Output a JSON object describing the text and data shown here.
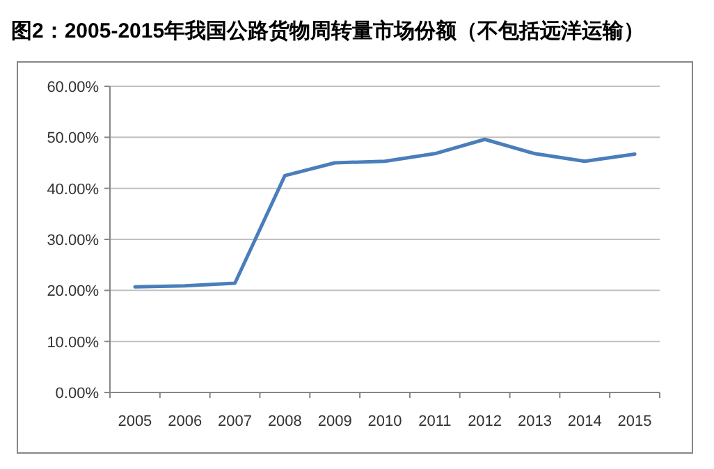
{
  "chart_data": {
    "type": "line",
    "title": "图2：2005-2015年我国公路货物周转量市场份额（不包括远洋运输）",
    "categories": [
      "2005",
      "2006",
      "2007",
      "2008",
      "2009",
      "2010",
      "2011",
      "2012",
      "2013",
      "2014",
      "2015"
    ],
    "series": [
      {
        "color": "#4a7ebb",
        "values": [
          20.7,
          20.9,
          21.4,
          42.5,
          45.0,
          45.3,
          46.8,
          49.6,
          46.8,
          45.3,
          46.7
        ]
      }
    ],
    "ylim": [
      0,
      60
    ],
    "yticks": [
      {
        "value": 0,
        "label": "0.00%"
      },
      {
        "value": 10,
        "label": "10.00%"
      },
      {
        "value": 20,
        "label": "20.00%"
      },
      {
        "value": 30,
        "label": "30.00%"
      },
      {
        "value": 40,
        "label": "40.00%"
      },
      {
        "value": 50,
        "label": "50.00%"
      },
      {
        "value": 60,
        "label": "60.00%"
      }
    ],
    "grid": "y",
    "marker": "none",
    "line_style": "solid"
  }
}
